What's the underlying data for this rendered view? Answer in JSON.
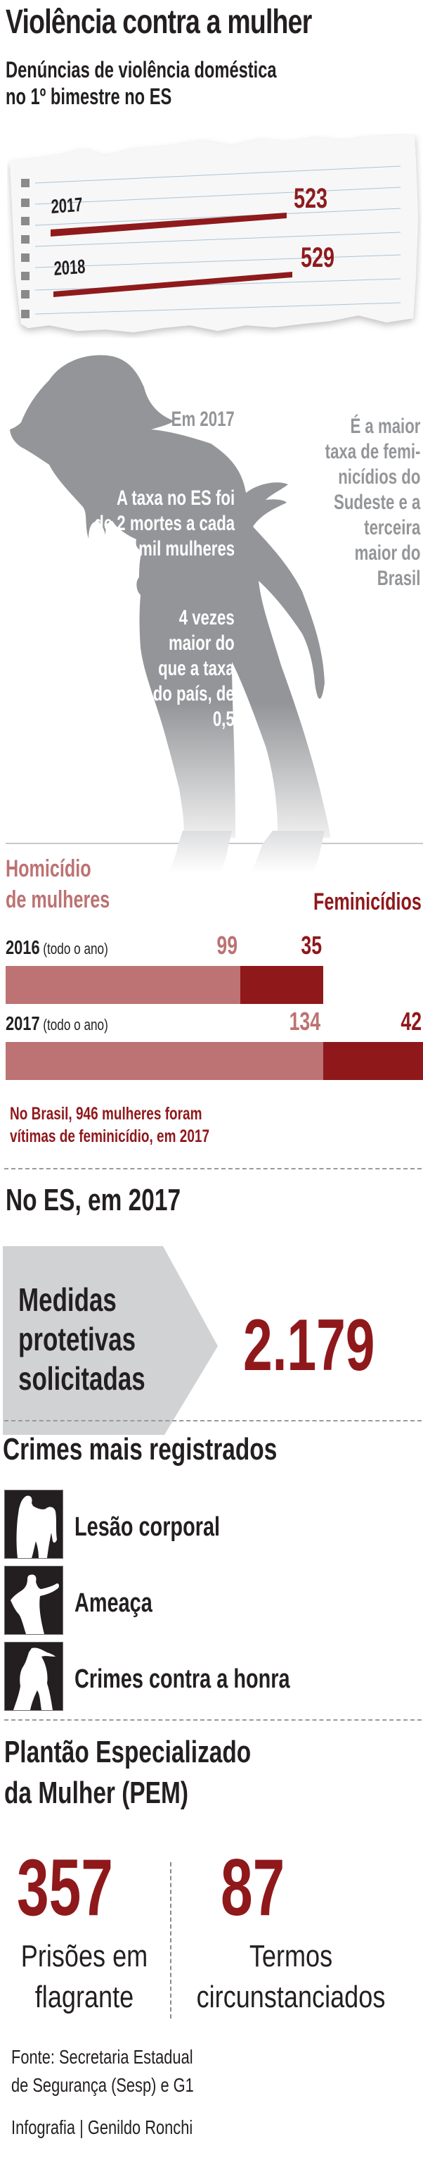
{
  "header": {
    "title": "Violência contra a mulher",
    "subtitle_line1": "Denúncias de violência doméstica",
    "subtitle_line2": "no 1º bimestre no ES"
  },
  "denuncias": {
    "rows": [
      {
        "year": "2017",
        "value": "523"
      },
      {
        "year": "2018",
        "value": "529"
      }
    ]
  },
  "silhouette": {
    "em_2017": "Em 2017",
    "taxa_lines": [
      "A taxa no ES foi",
      "de 2 mortes a cada",
      "100 mil mulheres"
    ],
    "vezes_lines": [
      "4 vezes",
      "maior do",
      "que a taxa",
      "do país, de",
      "0,5"
    ],
    "maior_lines": [
      "É a maior",
      "taxa de femi-",
      "nicídios do",
      "Sudeste e a",
      "terceira",
      "maior do",
      "Brasil"
    ]
  },
  "homicidios": {
    "legend_homicidio_line1": "Homicídio",
    "legend_homicidio_line2": "de mulheres",
    "legend_feminicidio": "Feminicídios",
    "rows": [
      {
        "year": "2016",
        "note": "(todo o ano)",
        "homicidio": "99",
        "feminicidio": "35"
      },
      {
        "year": "2017",
        "note": "(todo o ano)",
        "homicidio": "134",
        "feminicidio": "42"
      }
    ],
    "brasil_note_line1": "No Brasil, 946 mulheres foram",
    "brasil_note_line2": "vítimas de feminicídio, em 2017"
  },
  "chart_data": {
    "type": "bar",
    "title": "Homicídio de mulheres / Feminicídios no ES",
    "categories": [
      "2016 (todo o ano)",
      "2017 (todo o ano)"
    ],
    "series": [
      {
        "name": "Homicídio de mulheres",
        "values": [
          99,
          134
        ],
        "color": "#bd7373"
      },
      {
        "name": "Feminicídios",
        "values": [
          35,
          42
        ],
        "color": "#8f181b"
      }
    ],
    "stacked": true,
    "orientation": "horizontal",
    "xmax": 176
  },
  "es_2017": {
    "heading": "No ES, em 2017",
    "medidas_lines": [
      "Medidas",
      "protetivas",
      "solicitadas"
    ],
    "medidas_value": "2.179"
  },
  "crimes": {
    "heading": "Crimes mais registrados",
    "items": [
      {
        "label": "Lesão corporal",
        "icon": "assault-silhouette-icon"
      },
      {
        "label": "Ameaça",
        "icon": "threat-silhouette-icon"
      },
      {
        "label": "Crimes contra a honra",
        "icon": "woman-silhouette-icon"
      }
    ]
  },
  "pem": {
    "heading_line1": "Plantão Especializado",
    "heading_line2": "da Mulher (PEM)",
    "stats": [
      {
        "value": "357",
        "label_line1": "Prisões em",
        "label_line2": "flagrante"
      },
      {
        "value": "87",
        "label_line1": "Termos",
        "label_line2": "circunstanciados"
      }
    ]
  },
  "footer": {
    "source_line1": "Fonte: Secretaria Estadual",
    "source_line2": "de Segurança (Sesp) e G1",
    "credit": "Infografia | Genildo Ronchi"
  },
  "colors": {
    "dark_red": "#8f181b",
    "light_red": "#bd7373",
    "silhouette_grey": "#939598",
    "box_grey": "#d1d2d4",
    "text_dark": "#231f20"
  }
}
